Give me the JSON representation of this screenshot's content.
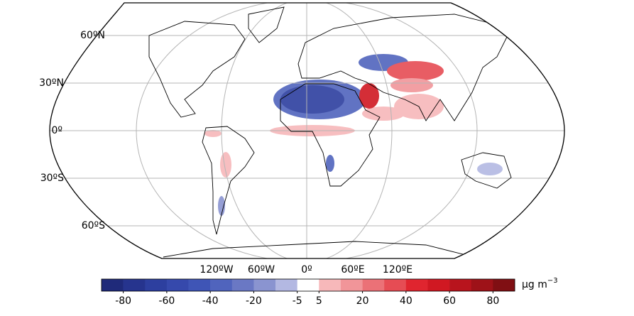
{
  "map": {
    "lat_labels": [
      "60ºN",
      "30ºN",
      "0º",
      "30ºS",
      "60ºS"
    ],
    "lon_labels": [
      "120ºW",
      "60ºW",
      "0º",
      "60ºE",
      "120ºE"
    ],
    "colorbar": {
      "levels": [
        -90,
        -80,
        -70,
        -60,
        -50,
        -40,
        -30,
        -20,
        -10,
        -5,
        5,
        10,
        20,
        30,
        40,
        50,
        60,
        70,
        80,
        90
      ],
      "colors": [
        "#1f2a7a",
        "#26348e",
        "#2d3f9f",
        "#3649ac",
        "#3f55b6",
        "#5064bd",
        "#6a78c4",
        "#8a94d0",
        "#b3b8e2",
        "#ffffff",
        "#f7b8ba",
        "#f19599",
        "#eb7177",
        "#e64c54",
        "#e0252f",
        "#d01822",
        "#b8141d",
        "#9e1218",
        "#800f13"
      ],
      "ticks": [
        -80,
        -60,
        -40,
        -20,
        -5,
        5,
        20,
        40,
        60,
        80
      ],
      "unit": "μg m",
      "unit_exponent": "−3"
    }
  }
}
